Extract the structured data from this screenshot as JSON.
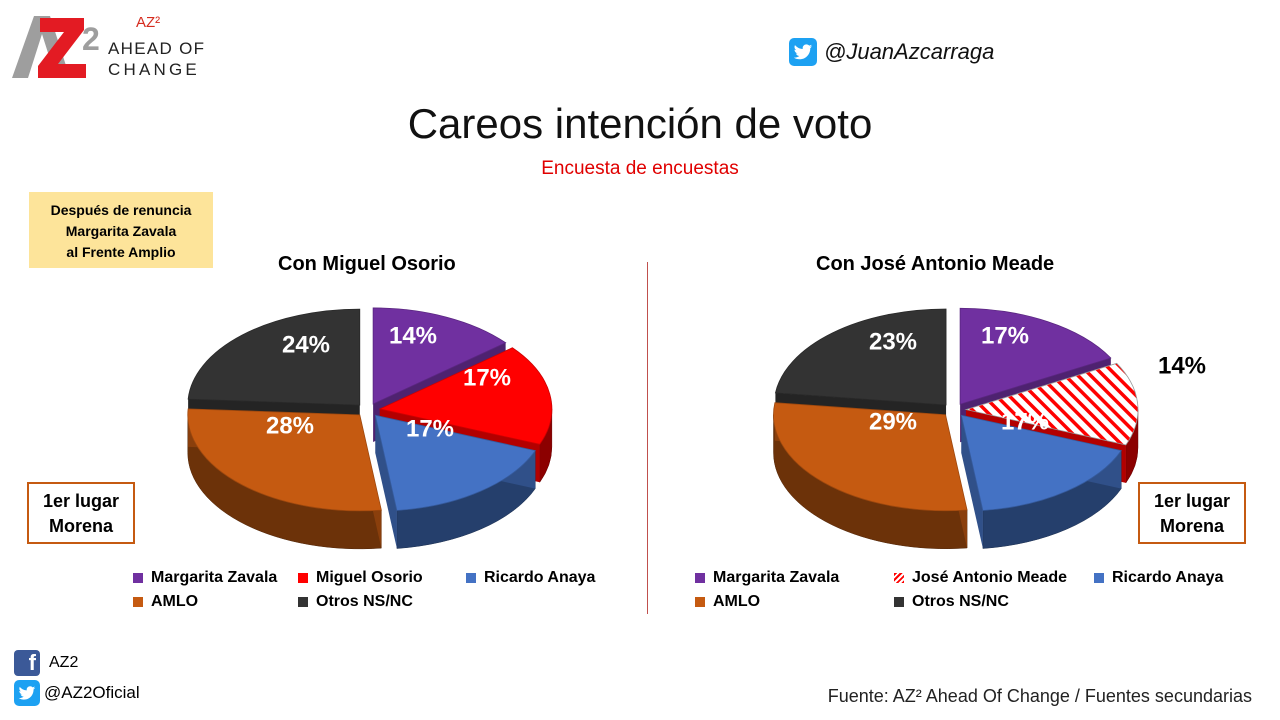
{
  "logo": {
    "superscript": "AZ²",
    "line1": "AHEAD OF",
    "line2": "CHANGE"
  },
  "header": {
    "twitter_handle": "@JuanAzcarraga",
    "title": "Careos intención de voto",
    "subtitle": "Encuesta de encuestas"
  },
  "note": {
    "lines": [
      "Después de renuncia",
      "Margarita Zavala",
      "al Frente Amplio"
    ]
  },
  "winner_box": {
    "line1": "1er lugar",
    "line2": "Morena"
  },
  "footer": {
    "facebook": "AZ2",
    "twitter": "@AZ2Oficial",
    "source": "Fuente: AZ² Ahead Of Change / Fuentes secundarias"
  },
  "colors": {
    "purple": "#7030a0",
    "red": "#ff0000",
    "blue": "#4472c4",
    "orange": "#c55a11",
    "dark": "#404040",
    "title_red": "#e00000",
    "note_bg": "#fde49a"
  },
  "chart_data": [
    {
      "type": "pie",
      "title": "Con Miguel Osorio",
      "categories": [
        "Margarita Zavala",
        "Miguel Osorio",
        "Ricardo Anaya",
        "AMLO",
        "Otros NS/NC"
      ],
      "values": [
        14,
        17,
        17,
        28,
        24
      ],
      "labels": [
        "14%",
        "17%",
        "17%",
        "28%",
        "24%"
      ],
      "colors": [
        "#7030a0",
        "#ff0000",
        "#4472c4",
        "#c55a11",
        "#333333"
      ],
      "hatched": [
        false,
        false,
        false,
        false,
        false
      ],
      "legend": "bottom"
    },
    {
      "type": "pie",
      "title": "Con José Antonio Meade",
      "categories": [
        "Margarita Zavala",
        "José Antonio Meade",
        "Ricardo Anaya",
        "AMLO",
        "Otros NS/NC"
      ],
      "values": [
        17,
        14,
        17,
        29,
        23
      ],
      "labels": [
        "17%",
        "14%",
        "17%",
        "29%",
        "23%"
      ],
      "colors": [
        "#7030a0",
        "#ff0000",
        "#4472c4",
        "#c55a11",
        "#333333"
      ],
      "hatched": [
        false,
        true,
        false,
        false,
        false
      ],
      "legend": "bottom"
    }
  ]
}
